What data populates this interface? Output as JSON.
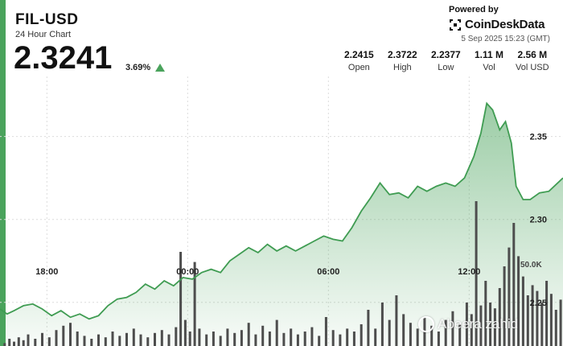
{
  "header": {
    "symbol": "FIL-USD",
    "subtitle": "24 Hour Chart",
    "price": "2.3241",
    "change": "3.69%",
    "powered_by": "Powered by",
    "brand": "CoinDeskData",
    "timestamp": "5 Sep 2025 15:23 (GMT)"
  },
  "stats": [
    {
      "value": "2.2415",
      "label": "Open"
    },
    {
      "value": "2.3722",
      "label": "High"
    },
    {
      "value": "2.2377",
      "label": "Low"
    },
    {
      "value": "1.11 M",
      "label": "Vol"
    },
    {
      "value": "2.56 M",
      "label": "Vol USD"
    }
  ],
  "watermark": "Abeera zahid",
  "colors": {
    "accent": "#4aa35c",
    "line": "#3f9c52",
    "volume": "#4d4d4d"
  },
  "chart_data": {
    "type": "area",
    "xlim": [
      0,
      24
    ],
    "ylim": [
      2.2237,
      2.3862
    ],
    "x_ticks": [
      {
        "x": 2,
        "label": "18:00"
      },
      {
        "x": 8,
        "label": "00:00"
      },
      {
        "x": 14,
        "label": "06:00"
      },
      {
        "x": 20,
        "label": "12:00"
      }
    ],
    "y_ticks": [
      {
        "y": 2.25,
        "label": "2.25"
      },
      {
        "y": 2.3,
        "label": "2.30"
      },
      {
        "y": 2.35,
        "label": "2.35"
      }
    ],
    "grid": true,
    "price_series": [
      [
        0,
        2.246
      ],
      [
        0.3,
        2.243
      ],
      [
        0.6,
        2.245
      ],
      [
        1.0,
        2.248
      ],
      [
        1.4,
        2.249
      ],
      [
        1.8,
        2.246
      ],
      [
        2.2,
        2.242
      ],
      [
        2.6,
        2.245
      ],
      [
        3.0,
        2.241
      ],
      [
        3.4,
        2.243
      ],
      [
        3.8,
        2.24
      ],
      [
        4.2,
        2.242
      ],
      [
        4.6,
        2.248
      ],
      [
        5.0,
        2.252
      ],
      [
        5.4,
        2.253
      ],
      [
        5.8,
        2.256
      ],
      [
        6.2,
        2.261
      ],
      [
        6.6,
        2.258
      ],
      [
        7.0,
        2.263
      ],
      [
        7.4,
        2.26
      ],
      [
        7.8,
        2.265
      ],
      [
        8.2,
        2.264
      ],
      [
        8.6,
        2.268
      ],
      [
        9.0,
        2.27
      ],
      [
        9.4,
        2.268
      ],
      [
        9.8,
        2.275
      ],
      [
        10.2,
        2.279
      ],
      [
        10.6,
        2.283
      ],
      [
        11.0,
        2.28
      ],
      [
        11.4,
        2.285
      ],
      [
        11.8,
        2.281
      ],
      [
        12.2,
        2.284
      ],
      [
        12.6,
        2.281
      ],
      [
        13.0,
        2.284
      ],
      [
        13.4,
        2.287
      ],
      [
        13.8,
        2.29
      ],
      [
        14.2,
        2.288
      ],
      [
        14.6,
        2.287
      ],
      [
        15.0,
        2.295
      ],
      [
        15.4,
        2.305
      ],
      [
        15.8,
        2.313
      ],
      [
        16.2,
        2.322
      ],
      [
        16.6,
        2.315
      ],
      [
        17.0,
        2.316
      ],
      [
        17.4,
        2.313
      ],
      [
        17.8,
        2.32
      ],
      [
        18.2,
        2.317
      ],
      [
        18.6,
        2.32
      ],
      [
        19.0,
        2.322
      ],
      [
        19.4,
        2.32
      ],
      [
        19.8,
        2.325
      ],
      [
        20.2,
        2.338
      ],
      [
        20.5,
        2.352
      ],
      [
        20.75,
        2.37
      ],
      [
        21.0,
        2.366
      ],
      [
        21.3,
        2.354
      ],
      [
        21.55,
        2.359
      ],
      [
        21.8,
        2.346
      ],
      [
        22.0,
        2.32
      ],
      [
        22.3,
        2.312
      ],
      [
        22.6,
        2.312
      ],
      [
        23.0,
        2.316
      ],
      [
        23.4,
        2.317
      ],
      [
        24.0,
        2.325
      ]
    ],
    "volume_series": [
      [
        0.2,
        0.02
      ],
      [
        0.4,
        0.05
      ],
      [
        0.6,
        0.03
      ],
      [
        0.8,
        0.06
      ],
      [
        1.0,
        0.04
      ],
      [
        1.2,
        0.08
      ],
      [
        1.5,
        0.05
      ],
      [
        1.8,
        0.09
      ],
      [
        2.1,
        0.06
      ],
      [
        2.4,
        0.11
      ],
      [
        2.7,
        0.14
      ],
      [
        3.0,
        0.16
      ],
      [
        3.3,
        0.1
      ],
      [
        3.6,
        0.07
      ],
      [
        3.9,
        0.05
      ],
      [
        4.2,
        0.08
      ],
      [
        4.5,
        0.06
      ],
      [
        4.8,
        0.1
      ],
      [
        5.1,
        0.07
      ],
      [
        5.4,
        0.09
      ],
      [
        5.7,
        0.12
      ],
      [
        6.0,
        0.08
      ],
      [
        6.3,
        0.06
      ],
      [
        6.6,
        0.09
      ],
      [
        6.9,
        0.11
      ],
      [
        7.2,
        0.08
      ],
      [
        7.5,
        0.13
      ],
      [
        7.7,
        0.65
      ],
      [
        7.9,
        0.18
      ],
      [
        8.1,
        0.1
      ],
      [
        8.3,
        0.58
      ],
      [
        8.5,
        0.12
      ],
      [
        8.8,
        0.08
      ],
      [
        9.1,
        0.1
      ],
      [
        9.4,
        0.07
      ],
      [
        9.7,
        0.12
      ],
      [
        10.0,
        0.09
      ],
      [
        10.3,
        0.11
      ],
      [
        10.6,
        0.16
      ],
      [
        10.9,
        0.08
      ],
      [
        11.2,
        0.14
      ],
      [
        11.5,
        0.1
      ],
      [
        11.8,
        0.18
      ],
      [
        12.1,
        0.09
      ],
      [
        12.4,
        0.12
      ],
      [
        12.7,
        0.08
      ],
      [
        13.0,
        0.1
      ],
      [
        13.3,
        0.13
      ],
      [
        13.6,
        0.07
      ],
      [
        13.9,
        0.2
      ],
      [
        14.2,
        0.11
      ],
      [
        14.5,
        0.08
      ],
      [
        14.8,
        0.12
      ],
      [
        15.1,
        0.1
      ],
      [
        15.4,
        0.15
      ],
      [
        15.7,
        0.25
      ],
      [
        16.0,
        0.12
      ],
      [
        16.3,
        0.3
      ],
      [
        16.6,
        0.18
      ],
      [
        16.9,
        0.35
      ],
      [
        17.2,
        0.22
      ],
      [
        17.5,
        0.16
      ],
      [
        17.8,
        0.12
      ],
      [
        18.1,
        0.2
      ],
      [
        18.4,
        0.14
      ],
      [
        18.7,
        0.1
      ],
      [
        19.0,
        0.18
      ],
      [
        19.3,
        0.24
      ],
      [
        19.6,
        0.15
      ],
      [
        19.9,
        0.3
      ],
      [
        20.1,
        0.22
      ],
      [
        20.3,
        1.0
      ],
      [
        20.5,
        0.28
      ],
      [
        20.7,
        0.45
      ],
      [
        20.9,
        0.3
      ],
      [
        21.1,
        0.26
      ],
      [
        21.3,
        0.4
      ],
      [
        21.5,
        0.55
      ],
      [
        21.7,
        0.68
      ],
      [
        21.9,
        0.85
      ],
      [
        22.1,
        0.62
      ],
      [
        22.3,
        0.48
      ],
      [
        22.5,
        0.35
      ],
      [
        22.7,
        0.42
      ],
      [
        22.9,
        0.38
      ],
      [
        23.1,
        0.3
      ],
      [
        23.3,
        0.45
      ],
      [
        23.5,
        0.36
      ],
      [
        23.7,
        0.25
      ],
      [
        23.9,
        0.32
      ]
    ],
    "volume_tick": "50.0K"
  }
}
